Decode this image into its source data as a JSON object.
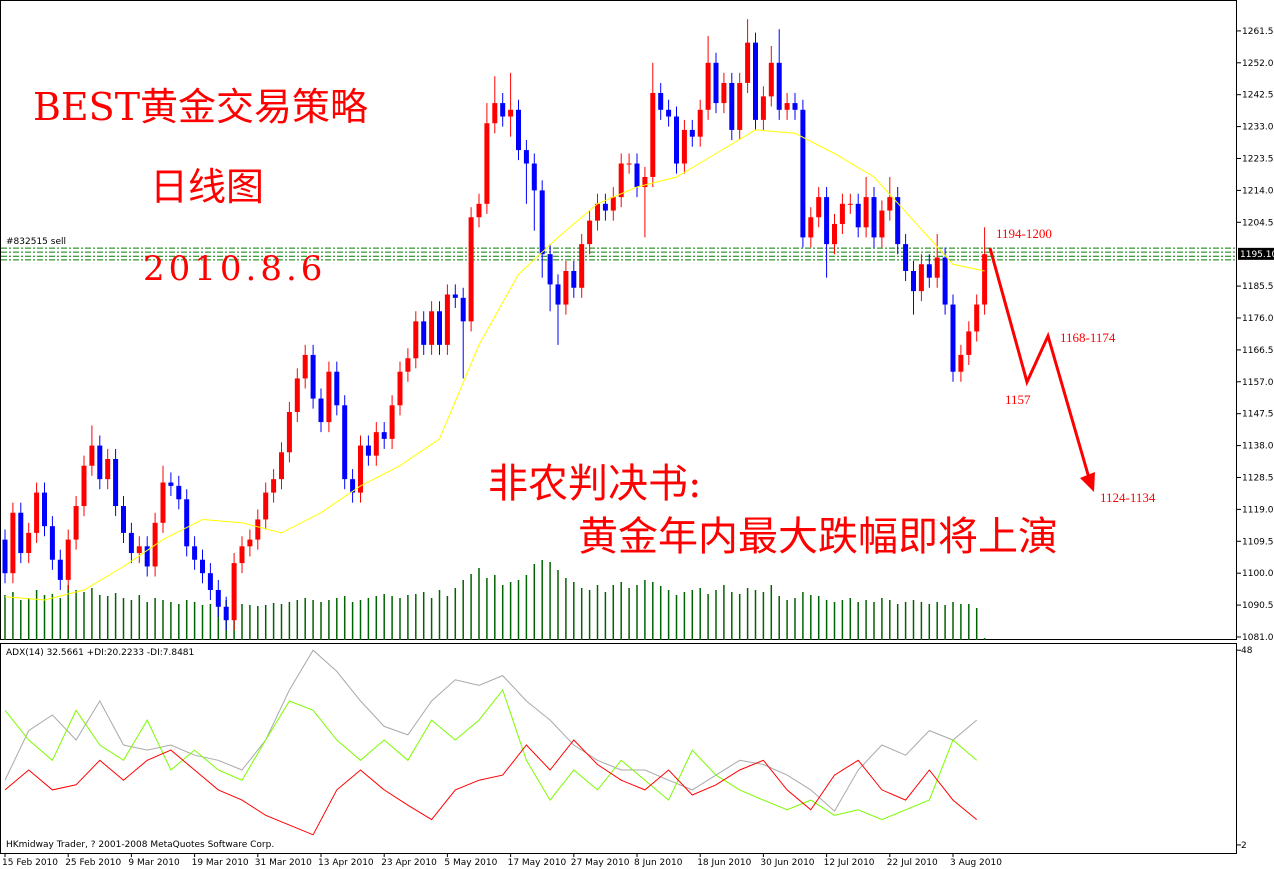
{
  "chart_data": {
    "type": "candlestick",
    "title": "BEST黄金交易策略",
    "subtitle": "日线图",
    "date": "2010.8.6",
    "headline": [
      "非农判决书:",
      "黄金年内最大跌幅即将上演"
    ],
    "targets": [
      "1194-1200",
      "1168-1174",
      "1157",
      "1124-1134"
    ],
    "order_label": "#832515 sell",
    "copyright": "HKmidway Trader, ? 2001-2008 MetaQuotes Software Corp.",
    "categories": [
      "15 Feb 2010",
      null,
      null,
      null,
      null,
      null,
      null,
      null,
      "25 Feb 2010",
      null,
      null,
      null,
      null,
      null,
      null,
      null,
      "9 Mar 2010",
      null,
      null,
      null,
      null,
      null,
      null,
      null,
      "19 Mar 2010",
      null,
      null,
      null,
      null,
      null,
      null,
      null,
      "31 Mar 2010",
      null,
      null,
      null,
      null,
      null,
      null,
      null,
      "13 Apr 2010",
      null,
      null,
      null,
      null,
      null,
      null,
      null,
      "23 Apr 2010",
      null,
      null,
      null,
      null,
      null,
      null,
      null,
      "5 May 2010",
      null,
      null,
      null,
      null,
      null,
      null,
      null,
      "17 May 2010",
      null,
      null,
      null,
      null,
      null,
      null,
      null,
      "27 May 2010",
      null,
      null,
      null,
      null,
      null,
      null,
      null,
      "8 Jun 2010",
      null,
      null,
      null,
      null,
      null,
      null,
      null,
      "18 Jun 2010",
      null,
      null,
      null,
      null,
      null,
      null,
      null,
      "30 Jun 2010",
      null,
      null,
      null,
      null,
      null,
      null,
      null,
      "12 Jul 2010",
      null,
      null,
      null,
      null,
      null,
      null,
      null,
      "22 Jul 2010",
      null,
      null,
      null,
      null,
      null,
      null,
      null,
      "3 Aug 2010",
      null,
      null,
      null,
      null
    ],
    "open": [
      1110,
      1100,
      1118,
      1106,
      1112,
      1124,
      1114,
      1104,
      1098,
      1110,
      1120,
      1132,
      1138,
      1128,
      1134,
      1120,
      1112,
      1106,
      1108,
      1102,
      1115,
      1127,
      1126,
      1122,
      1108,
      1104,
      1100,
      1095,
      1090,
      1086,
      1103,
      1108,
      1110,
      1116,
      1124,
      1128,
      1136,
      1148,
      1158,
      1165,
      1152,
      1145,
      1160,
      1150,
      1128,
      1124,
      1138,
      1135,
      1142,
      1140,
      1150,
      1160,
      1164,
      1175,
      1168,
      1178,
      1168,
      1183,
      1182,
      1175,
      1206,
      1210,
      1234,
      1240,
      1236,
      1238,
      1226,
      1222,
      1214,
      1195,
      1186,
      1180,
      1190,
      1185,
      1198,
      1205,
      1210,
      1208,
      1212,
      1222,
      1222,
      1215,
      1218,
      1243,
      1238,
      1236,
      1222,
      1232,
      1230,
      1238,
      1252,
      1240,
      1246,
      1232,
      1246,
      1258,
      1235,
      1242,
      1252,
      1238,
      1240,
      1238,
      1200,
      1206,
      1212,
      1198,
      1204,
      1210,
      1210,
      1203,
      1212,
      1200,
      1208,
      1212,
      1198,
      1190,
      1184,
      1192,
      1188,
      1194,
      1180,
      1160,
      1165,
      1172,
      1180
    ],
    "high": [
      1113,
      1121,
      1121,
      1115,
      1127,
      1127,
      1117,
      1107,
      1113,
      1123,
      1135,
      1144,
      1141,
      1137,
      1137,
      1123,
      1115,
      1111,
      1111,
      1118,
      1132,
      1130,
      1129,
      1125,
      1111,
      1107,
      1103,
      1098,
      1093,
      1106,
      1111,
      1113,
      1119,
      1127,
      1131,
      1139,
      1151,
      1161,
      1168,
      1168,
      1155,
      1163,
      1163,
      1153,
      1131,
      1141,
      1141,
      1145,
      1145,
      1153,
      1163,
      1167,
      1178,
      1178,
      1181,
      1181,
      1186,
      1186,
      1185,
      1209,
      1213,
      1240,
      1248,
      1243,
      1249,
      1241,
      1229,
      1225,
      1217,
      1198,
      1189,
      1193,
      1193,
      1201,
      1208,
      1213,
      1213,
      1215,
      1225,
      1225,
      1225,
      1221,
      1252,
      1246,
      1241,
      1239,
      1235,
      1235,
      1241,
      1260,
      1255,
      1249,
      1249,
      1249,
      1265,
      1261,
      1245,
      1257,
      1262,
      1243,
      1243,
      1241,
      1209,
      1215,
      1215,
      1207,
      1213,
      1213,
      1213,
      1218,
      1215,
      1211,
      1218,
      1215,
      1201,
      1193,
      1195,
      1195,
      1201,
      1197,
      1183,
      1168,
      1175,
      1183,
      1203
    ],
    "low": [
      1097,
      1097,
      1103,
      1103,
      1109,
      1111,
      1101,
      1095,
      1095,
      1107,
      1117,
      1129,
      1125,
      1125,
      1117,
      1109,
      1103,
      1103,
      1099,
      1099,
      1112,
      1123,
      1119,
      1105,
      1101,
      1097,
      1092,
      1087,
      1083,
      1083,
      1100,
      1105,
      1107,
      1113,
      1121,
      1125,
      1133,
      1145,
      1155,
      1149,
      1142,
      1142,
      1147,
      1125,
      1121,
      1121,
      1132,
      1132,
      1137,
      1137,
      1147,
      1157,
      1161,
      1165,
      1165,
      1165,
      1165,
      1179,
      1158,
      1172,
      1203,
      1207,
      1231,
      1233,
      1230,
      1223,
      1210,
      1202,
      1188,
      1178,
      1168,
      1177,
      1182,
      1182,
      1195,
      1202,
      1205,
      1205,
      1209,
      1219,
      1212,
      1200,
      1215,
      1235,
      1233,
      1219,
      1219,
      1227,
      1227,
      1235,
      1237,
      1237,
      1229,
      1229,
      1243,
      1232,
      1232,
      1239,
      1235,
      1235,
      1235,
      1197,
      1197,
      1203,
      1188,
      1195,
      1201,
      1207,
      1200,
      1200,
      1197,
      1197,
      1205,
      1195,
      1187,
      1177,
      1181,
      1185,
      1185,
      1177,
      1157,
      1157,
      1162,
      1169,
      1177
    ],
    "close": [
      1100,
      1118,
      1106,
      1112,
      1124,
      1114,
      1104,
      1098,
      1110,
      1120,
      1132,
      1138,
      1128,
      1134,
      1120,
      1112,
      1106,
      1108,
      1102,
      1115,
      1127,
      1126,
      1122,
      1108,
      1104,
      1100,
      1095,
      1090,
      1086,
      1103,
      1108,
      1110,
      1116,
      1124,
      1128,
      1136,
      1148,
      1158,
      1165,
      1152,
      1145,
      1160,
      1150,
      1128,
      1124,
      1138,
      1135,
      1142,
      1140,
      1150,
      1160,
      1164,
      1175,
      1168,
      1178,
      1168,
      1183,
      1182,
      1175,
      1206,
      1210,
      1234,
      1240,
      1236,
      1238,
      1226,
      1222,
      1214,
      1195,
      1186,
      1180,
      1190,
      1185,
      1198,
      1205,
      1210,
      1208,
      1212,
      1222,
      1222,
      1215,
      1218,
      1243,
      1238,
      1236,
      1222,
      1232,
      1230,
      1238,
      1252,
      1240,
      1246,
      1232,
      1246,
      1258,
      1235,
      1242,
      1252,
      1238,
      1240,
      1238,
      1200,
      1206,
      1212,
      1198,
      1204,
      1210,
      1210,
      1203,
      1212,
      1200,
      1208,
      1212,
      1198,
      1190,
      1184,
      1192,
      1188,
      1194,
      1180,
      1160,
      1165,
      1172,
      1180,
      1195
    ],
    "up_color": "#ff0000",
    "down_color": "#0000ff",
    "ylim": [
      1080.1,
      1270.7
    ],
    "yticks": [
      {
        "value": 1261.5,
        "label": "1261.50"
      },
      {
        "value": 1252,
        "label": "1252.00"
      },
      {
        "value": 1242.5,
        "label": "1242.50"
      },
      {
        "value": 1233,
        "label": "1233.00"
      },
      {
        "value": 1223.5,
        "label": "1223.50"
      },
      {
        "value": 1214,
        "label": "1214.00"
      },
      {
        "value": 1204.5,
        "label": "1204.50"
      },
      {
        "value": 1185.5,
        "label": "1185.50"
      },
      {
        "value": 1176,
        "label": "1176.00"
      },
      {
        "value": 1166.5,
        "label": "1166.50"
      },
      {
        "value": 1157,
        "label": "1157.00"
      },
      {
        "value": 1147.5,
        "label": "1147.50"
      },
      {
        "value": 1138,
        "label": "1138.00"
      },
      {
        "value": 1128.5,
        "label": "1128.50"
      },
      {
        "value": 1119,
        "label": "1119.00"
      },
      {
        "value": 1109.5,
        "label": "1109.50"
      },
      {
        "value": 1100,
        "label": "1100.00"
      },
      {
        "value": 1090.5,
        "label": "1090.50"
      },
      {
        "value": 1081,
        "label": "1081.00"
      }
    ],
    "current_price": {
      "value": 1195.1,
      "label": "1195.10"
    },
    "order_lines": {
      "values": [
        1196.8,
        1195.6,
        1194.4,
        1193.3
      ],
      "color": "#008000"
    },
    "ma": {
      "color": "#ffff00",
      "x": [
        0,
        5,
        10,
        15,
        20,
        25,
        30,
        35,
        40,
        45,
        50,
        55,
        60,
        65,
        70,
        75,
        80,
        85,
        90,
        95,
        100,
        105,
        110,
        115,
        120,
        124
      ],
      "values": [
        1093,
        1092,
        1095,
        1102,
        1110,
        1116,
        1115,
        1112,
        1118,
        1126,
        1132,
        1140,
        1168,
        1189,
        1200,
        1210,
        1215,
        1218,
        1225,
        1232,
        1231,
        1225,
        1218,
        1205,
        1192,
        1190
      ]
    },
    "volume_color": "#006400",
    "volume": [
      45,
      48,
      40,
      42,
      50,
      45,
      46,
      42,
      55,
      50,
      48,
      52,
      45,
      44,
      47,
      42,
      40,
      45,
      38,
      42,
      40,
      38,
      36,
      40,
      38,
      35,
      36,
      42,
      40,
      38,
      36,
      35,
      34,
      35,
      37,
      36,
      38,
      40,
      42,
      40,
      38,
      40,
      42,
      44,
      38,
      40,
      42,
      44,
      46,
      44,
      42,
      45,
      46,
      48,
      42,
      50,
      44,
      52,
      60,
      66,
      72,
      62,
      65,
      55,
      58,
      60,
      65,
      76,
      80,
      78,
      70,
      62,
      58,
      52,
      50,
      55,
      48,
      55,
      58,
      52,
      55,
      60,
      58,
      54,
      50,
      45,
      48,
      50,
      52,
      46,
      50,
      55,
      48,
      46,
      52,
      50,
      48,
      55,
      44,
      40,
      42,
      48,
      45,
      44,
      40,
      38,
      40,
      42,
      38,
      40,
      38,
      42,
      40,
      36,
      38,
      40,
      38,
      36,
      38,
      35,
      38,
      36,
      36,
      32,
      2
    ],
    "indicator": {
      "type": "line",
      "title": "ADX(14) 32.5661 +DI:20.2233 -DI:7.8481",
      "ylim": [
        0.1,
        49.7
      ],
      "yticks": [
        48,
        2
      ],
      "x": [
        0,
        3,
        6,
        9,
        12,
        15,
        18,
        21,
        24,
        27,
        30,
        33,
        36,
        39,
        42,
        45,
        48,
        51,
        54,
        57,
        60,
        63,
        66,
        69,
        72,
        75,
        78,
        81,
        84,
        87,
        90,
        93,
        96,
        99,
        102,
        105,
        108,
        111,
        114,
        117,
        120,
        123
      ],
      "series": [
        {
          "color": "#a9a9a9",
          "values": [
            17.3,
            29,
            32.7,
            26.8,
            36,
            25.6,
            24.4,
            25.6,
            23.2,
            22,
            19.7,
            26.8,
            38.6,
            48,
            43,
            36,
            30,
            28,
            36,
            41,
            39.7,
            42,
            36,
            31.5,
            25.6,
            22,
            19.7,
            19.7,
            17.3,
            15,
            18.5,
            22,
            21,
            18.5,
            15,
            10,
            19.7,
            25.6,
            23.2,
            29,
            26.8,
            31.5
          ]
        },
        {
          "color": "#7cfc00",
          "values": [
            33.8,
            26.8,
            22,
            33.8,
            25.6,
            22,
            31.5,
            19.7,
            24.4,
            19.7,
            17.3,
            26.8,
            36,
            33.8,
            26.8,
            22,
            26.8,
            22,
            31.5,
            26.8,
            31.5,
            38.6,
            22,
            12.6,
            19.7,
            15,
            22,
            17.3,
            12.6,
            24.4,
            18.5,
            15,
            12.6,
            10.3,
            12.6,
            9,
            10.3,
            8,
            10.3,
            12.6,
            26.8,
            22
          ]
        },
        {
          "color": "#ff0000",
          "values": [
            15,
            19.7,
            15,
            16.2,
            22,
            17.3,
            22,
            24.4,
            19.7,
            15,
            12.6,
            9,
            6.7,
            4.4,
            15,
            19.7,
            15,
            11.4,
            8,
            15,
            17.3,
            18.5,
            25.6,
            19.7,
            26.8,
            21,
            17.3,
            15,
            19.7,
            13.8,
            16.2,
            19.7,
            22,
            15,
            10.3,
            18.5,
            22,
            15,
            12.6,
            19.7,
            12.6,
            8
          ]
        }
      ]
    }
  }
}
